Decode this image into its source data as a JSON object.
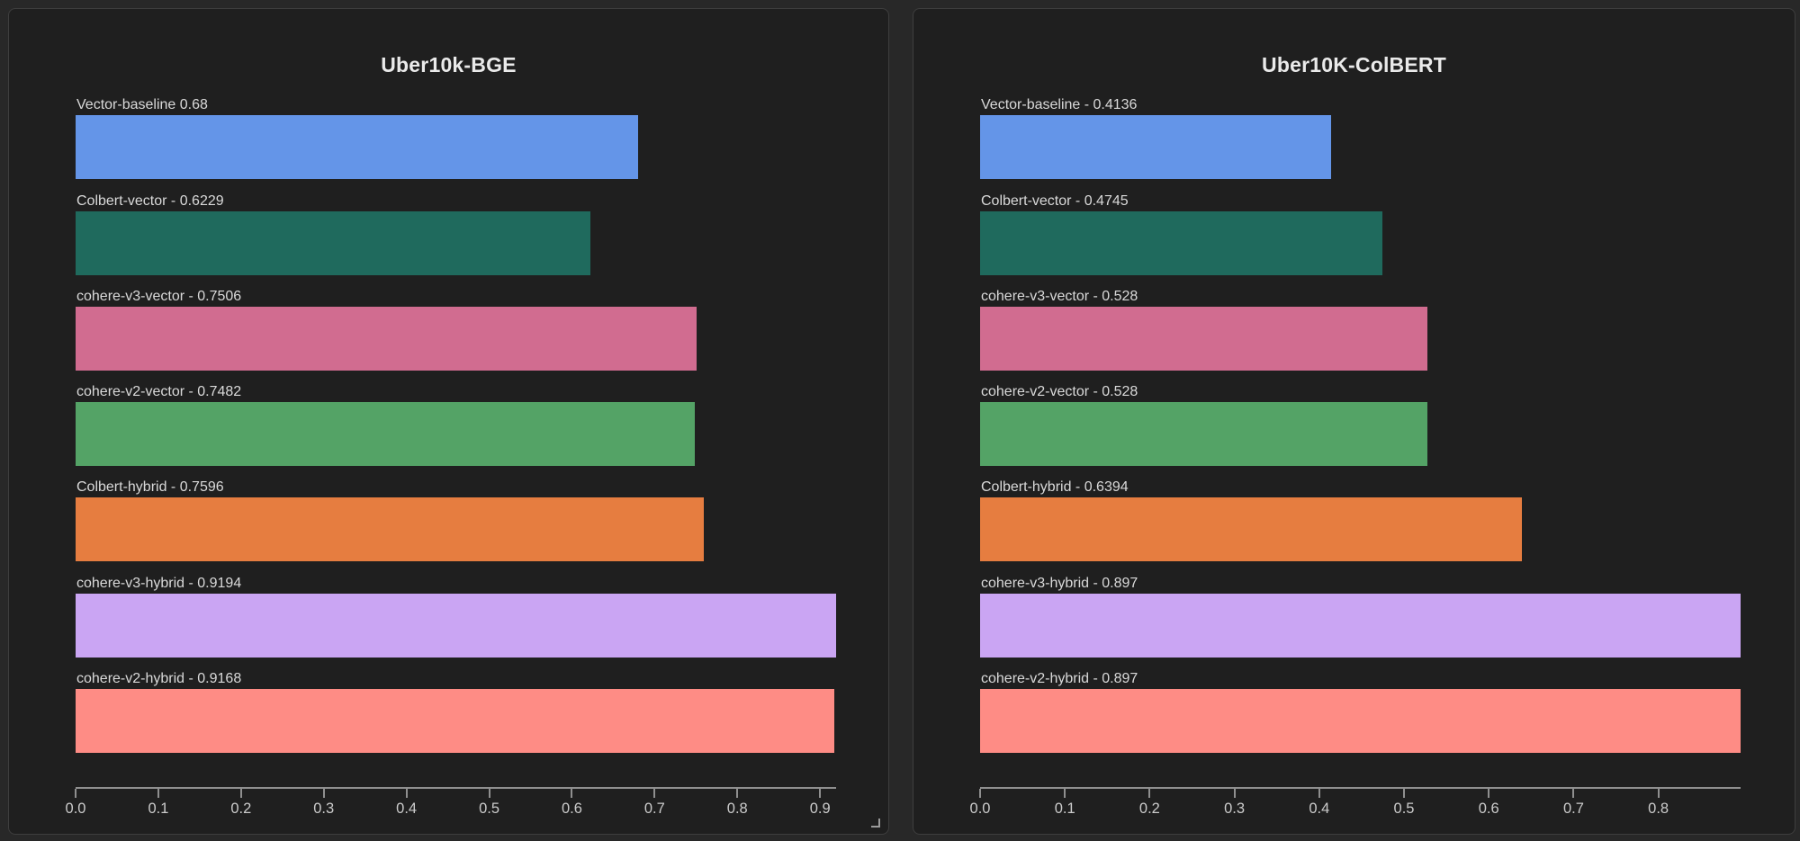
{
  "colors": {
    "page_background": "#282828",
    "panel_background": "#1f1f1f",
    "panel_border": "#3e3e3e",
    "axis": "#8f8f8f",
    "label_text": "#d9d9d9",
    "tick_text": "#cbcbcb",
    "title_text": "#eaeaea"
  },
  "chart_data": [
    {
      "type": "bar",
      "orientation": "horizontal",
      "title": "Uber10k-BGE",
      "xlabel": "",
      "ylabel": "",
      "xlim": [
        0,
        0.9194
      ],
      "grid": false,
      "legend": false,
      "bars": [
        {
          "label": "Vector-baseline 0.68",
          "name": "Vector-baseline",
          "value": 0.68,
          "color": "#6495e8"
        },
        {
          "label": "Colbert-vector - 0.6229",
          "name": "Colbert-vector",
          "value": 0.6229,
          "color": "#1f6a5d"
        },
        {
          "label": "cohere-v3-vector - 0.7506",
          "name": "cohere-v3-vector",
          "value": 0.7506,
          "color": "#d16c90"
        },
        {
          "label": "cohere-v2-vector - 0.7482",
          "name": "cohere-v2-vector",
          "value": 0.7482,
          "color": "#54a366"
        },
        {
          "label": "Colbert-hybrid - 0.7596",
          "name": "Colbert-hybrid",
          "value": 0.7596,
          "color": "#e67d40"
        },
        {
          "label": "cohere-v3-hybrid - 0.9194",
          "name": "cohere-v3-hybrid",
          "value": 0.9194,
          "color": "#caa5f3"
        },
        {
          "label": "cohere-v2-hybrid - 0.9168",
          "name": "cohere-v2-hybrid",
          "value": 0.9168,
          "color": "#fe8c85"
        }
      ],
      "x_ticks": [
        {
          "value": 0.0,
          "label": "0.0"
        },
        {
          "value": 0.1,
          "label": "0.1"
        },
        {
          "value": 0.2,
          "label": "0.2"
        },
        {
          "value": 0.3,
          "label": "0.3"
        },
        {
          "value": 0.4,
          "label": "0.4"
        },
        {
          "value": 0.5,
          "label": "0.5"
        },
        {
          "value": 0.6,
          "label": "0.6"
        },
        {
          "value": 0.7,
          "label": "0.7"
        },
        {
          "value": 0.8,
          "label": "0.8"
        },
        {
          "value": 0.9,
          "label": "0.9"
        }
      ]
    },
    {
      "type": "bar",
      "orientation": "horizontal",
      "title": "Uber10K-ColBERT",
      "xlabel": "",
      "ylabel": "",
      "xlim": [
        0,
        0.897
      ],
      "grid": false,
      "legend": false,
      "bars": [
        {
          "label": "Vector-baseline - 0.4136",
          "name": "Vector-baseline",
          "value": 0.4136,
          "color": "#6495e8"
        },
        {
          "label": "Colbert-vector - 0.4745",
          "name": "Colbert-vector",
          "value": 0.4745,
          "color": "#1f6a5d"
        },
        {
          "label": "cohere-v3-vector - 0.528",
          "name": "cohere-v3-vector",
          "value": 0.528,
          "color": "#d16c90"
        },
        {
          "label": "cohere-v2-vector - 0.528",
          "name": "cohere-v2-vector",
          "value": 0.528,
          "color": "#54a366"
        },
        {
          "label": "Colbert-hybrid - 0.6394",
          "name": "Colbert-hybrid",
          "value": 0.6394,
          "color": "#e67d40"
        },
        {
          "label": "cohere-v3-hybrid - 0.897",
          "name": "cohere-v3-hybrid",
          "value": 0.897,
          "color": "#caa5f3"
        },
        {
          "label": "cohere-v2-hybrid - 0.897",
          "name": "cohere-v2-hybrid",
          "value": 0.897,
          "color": "#fe8c85"
        }
      ],
      "x_ticks": [
        {
          "value": 0.0,
          "label": "0.0"
        },
        {
          "value": 0.1,
          "label": "0.1"
        },
        {
          "value": 0.2,
          "label": "0.2"
        },
        {
          "value": 0.3,
          "label": "0.3"
        },
        {
          "value": 0.4,
          "label": "0.4"
        },
        {
          "value": 0.5,
          "label": "0.5"
        },
        {
          "value": 0.6,
          "label": "0.6"
        },
        {
          "value": 0.7,
          "label": "0.7"
        },
        {
          "value": 0.8,
          "label": "0.8"
        }
      ]
    }
  ]
}
